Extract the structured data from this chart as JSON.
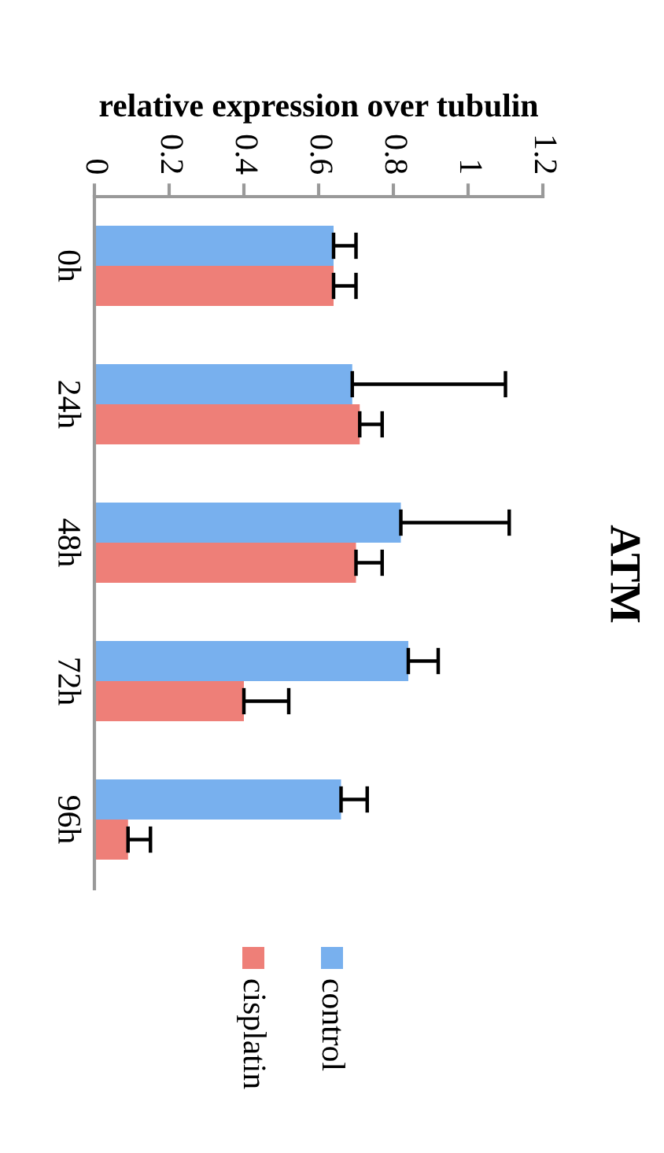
{
  "chart_data": {
    "type": "bar",
    "orientation": "horizontal",
    "title": "ATM",
    "xlabel": "relative expression over tubulin",
    "categories": [
      "0h",
      "24h",
      "48h",
      "72h",
      "96h"
    ],
    "series": [
      {
        "name": "control",
        "color": "#78b0ee",
        "values": [
          0.64,
          0.69,
          0.82,
          0.84,
          0.66
        ],
        "errors": [
          [
            0.64,
            0.7
          ],
          [
            0.69,
            1.1
          ],
          [
            0.82,
            1.11
          ],
          [
            0.84,
            0.92
          ],
          [
            0.66,
            0.73
          ]
        ]
      },
      {
        "name": "cisplatin",
        "color": "#ee7f78",
        "values": [
          0.64,
          0.71,
          0.7,
          0.4,
          0.09
        ],
        "errors": [
          [
            0.64,
            0.7
          ],
          [
            0.71,
            0.77
          ],
          [
            0.7,
            0.77
          ],
          [
            0.4,
            0.52
          ],
          [
            0.09,
            0.15
          ]
        ]
      }
    ],
    "xlim": [
      0,
      1.2
    ],
    "xticks": [
      0,
      0.2,
      0.4,
      0.6,
      0.8,
      1,
      1.2
    ],
    "grid": false,
    "legend": "bottom"
  }
}
